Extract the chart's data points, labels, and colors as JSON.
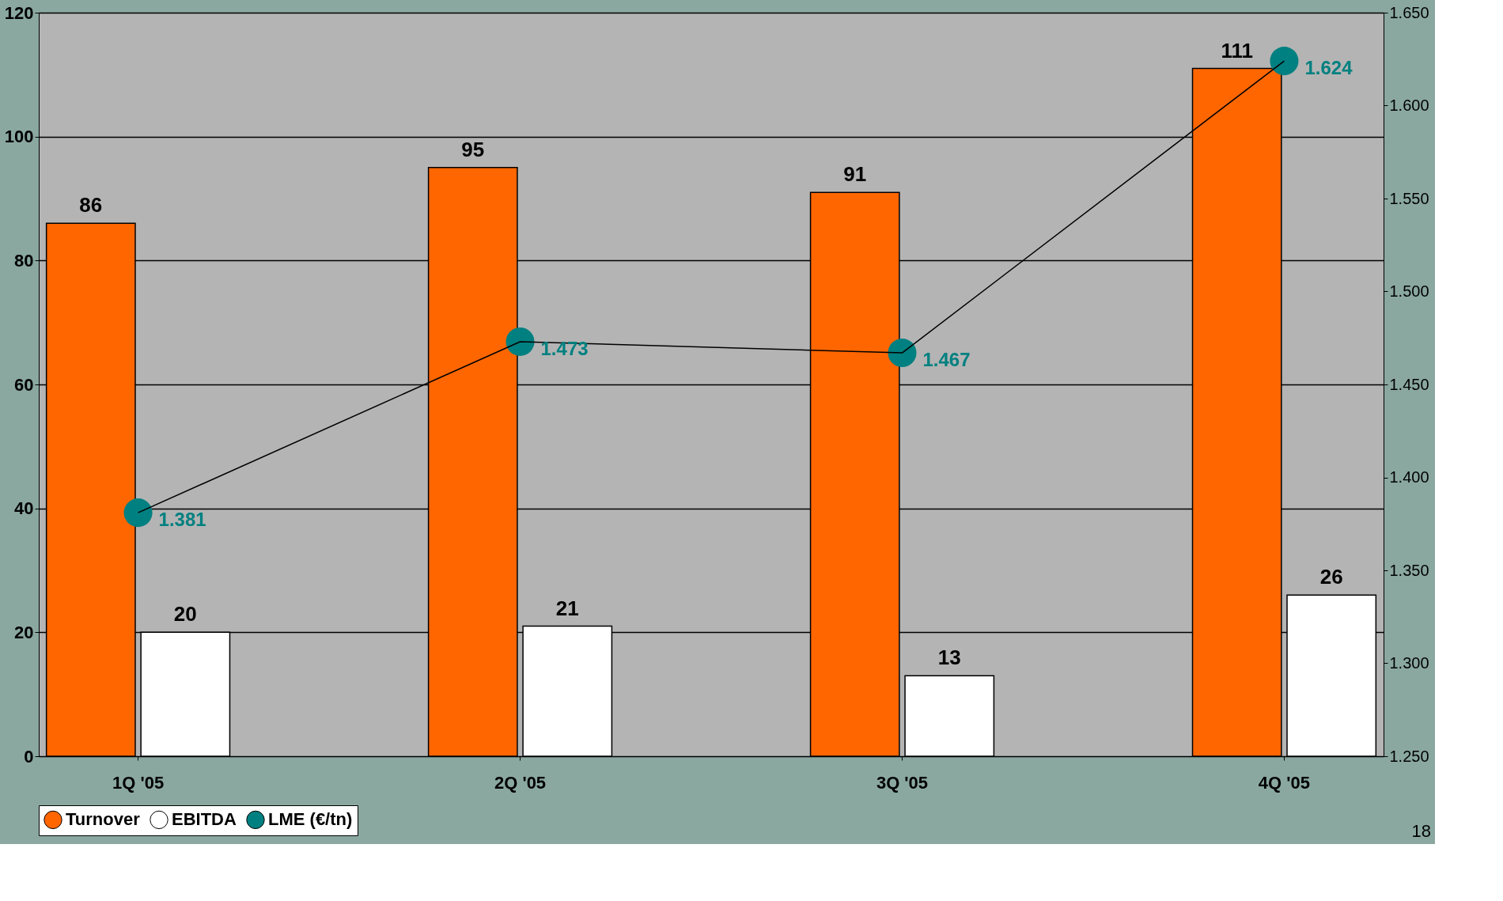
{
  "chart_data": {
    "type": "bar",
    "categories": [
      "1Q '05",
      "2Q '05",
      "3Q '05",
      "4Q '05"
    ],
    "series": [
      {
        "name": "Turnover",
        "color": "#ff6600",
        "values": [
          86,
          95,
          91,
          111
        ]
      },
      {
        "name": "EBITDA",
        "color": "#ffffff",
        "values": [
          20,
          21,
          13,
          26
        ]
      },
      {
        "name": "LME (€/tn)",
        "type": "line",
        "axis": "y2",
        "color": "#008080",
        "marker": "circle",
        "values": [
          1.381,
          1.473,
          1.467,
          1.624
        ],
        "value_labels": [
          "1.381",
          "1.473",
          "1.467",
          "1.624"
        ]
      }
    ],
    "ylim": [
      0,
      120
    ],
    "yticks": [
      0,
      20,
      40,
      60,
      80,
      100,
      120
    ],
    "y2lim": [
      1.25,
      1.65
    ],
    "y2ticks": [
      {
        "value": 1.25,
        "label": "1.250"
      },
      {
        "value": 1.3,
        "label": "1.300"
      },
      {
        "value": 1.35,
        "label": "1.350"
      },
      {
        "value": 1.4,
        "label": "1.400"
      },
      {
        "value": 1.45,
        "label": "1.450"
      },
      {
        "value": 1.5,
        "label": "1.500"
      },
      {
        "value": 1.55,
        "label": "1.550"
      },
      {
        "value": 1.6,
        "label": "1.600"
      },
      {
        "value": 1.65,
        "label": "1.650"
      }
    ],
    "data_labels": true,
    "grid": "y",
    "legend": "bottom",
    "annotations": [
      "18"
    ]
  }
}
